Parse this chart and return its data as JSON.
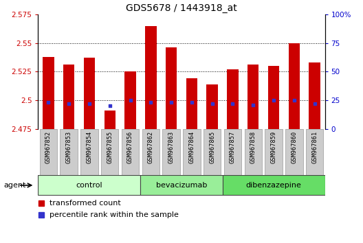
{
  "title": "GDS5678 / 1443918_at",
  "samples": [
    "GSM967852",
    "GSM967853",
    "GSM967854",
    "GSM967855",
    "GSM967856",
    "GSM967862",
    "GSM967863",
    "GSM967864",
    "GSM967865",
    "GSM967857",
    "GSM967858",
    "GSM967859",
    "GSM967860",
    "GSM967861"
  ],
  "bar_values": [
    2.538,
    2.531,
    2.537,
    2.491,
    2.525,
    2.565,
    2.546,
    2.519,
    2.514,
    2.527,
    2.531,
    2.53,
    2.55,
    2.533
  ],
  "percentile_values": [
    23,
    22,
    22,
    20,
    25,
    23,
    23,
    23,
    22,
    22,
    21,
    25,
    25,
    22
  ],
  "bar_color": "#cc0000",
  "percentile_color": "#3333cc",
  "ylim_left": [
    2.475,
    2.575
  ],
  "ylim_right": [
    0,
    100
  ],
  "yticks_left": [
    2.475,
    2.5,
    2.525,
    2.55,
    2.575
  ],
  "yticks_right": [
    0,
    25,
    50,
    75,
    100
  ],
  "ytick_labels_left": [
    "2.475",
    "2.5",
    "2.525",
    "2.55",
    "2.575"
  ],
  "ytick_labels_right": [
    "0",
    "25",
    "50",
    "75",
    "100%"
  ],
  "groups": [
    {
      "label": "control",
      "indices": [
        0,
        1,
        2,
        3,
        4
      ],
      "color": "#ccffcc"
    },
    {
      "label": "bevacizumab",
      "indices": [
        5,
        6,
        7,
        8
      ],
      "color": "#99ee99"
    },
    {
      "label": "dibenzazepine",
      "indices": [
        9,
        10,
        11,
        12,
        13
      ],
      "color": "#66dd66"
    }
  ],
  "agent_label": "agent",
  "legend1_label": "transformed count",
  "legend2_label": "percentile rank within the sample",
  "bar_width": 0.55,
  "grid_color": "black",
  "background_color": "#ffffff",
  "tick_color_left": "#cc0000",
  "tick_color_right": "#0000cc",
  "sample_box_color": "#cccccc",
  "sample_box_edge": "#999999"
}
